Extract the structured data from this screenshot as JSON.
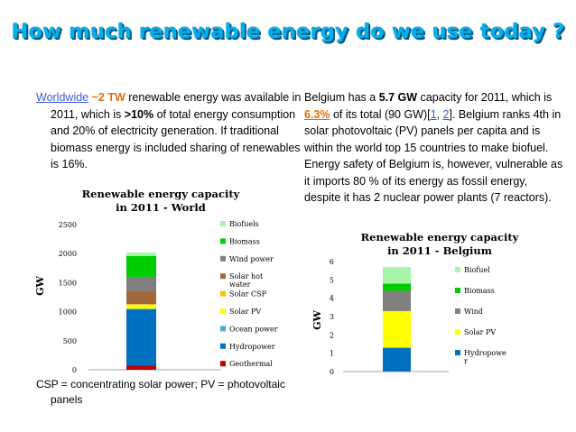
{
  "title": "How much renewable energy do we use today ?",
  "left_paragraph": {
    "worldwide": "Worldwide",
    "amount": "~2 TW",
    "rest_1": " renewable energy was available in 2011, which is ",
    "pct": ">10%",
    "rest_2": " of total energy consumption  and 20% of electricity generation. If traditional biomass energy is included sharing of renewables is 16%."
  },
  "right_paragraph": {
    "p1": "Belgium has a ",
    "capacity": "5.7 GW",
    "p2": " capacity for 2011, which  is ",
    "share": "6.3%",
    "p3": "  of its total (90 GW)[",
    "ref1": "1",
    "sep": ", ",
    "ref2": "2",
    "p4": "]. Belgium ranks 4th in solar photovoltaic (PV) panels per capita and is within the world top 15 countries to make biofuel. Energy safety of Belgium is, however, vulnerable as it imports  80 % of its energy as fossil energy, despite it has 2 nuclear power plants (7 reactors)."
  },
  "caption": "CSP = concentrating solar power; PV = photovoltaic panels",
  "chart_data": [
    {
      "type": "bar",
      "stacked": true,
      "title": [
        "Renewable energy capacity",
        "in 2011 - World"
      ],
      "ylabel": "GW",
      "ylim": [
        0,
        2500
      ],
      "yticks": [
        "0",
        "500",
        "1000",
        "1500",
        "2000",
        "2500"
      ],
      "series": [
        {
          "name": "Geothermal",
          "color": "#c00000",
          "value": 70
        },
        {
          "name": "Hydropower",
          "color": "#0070c0",
          "value": 970
        },
        {
          "name": "Ocean power",
          "color": "#4bacc6",
          "value": 10
        },
        {
          "name": "Solar PV",
          "color": "#ffff00",
          "value": 70
        },
        {
          "name": "Solar CSP",
          "color": "#ffc000",
          "value": 10
        },
        {
          "name": "Solar hot water",
          "color": "#a0683b",
          "value": 230
        },
        {
          "name": "Wind power",
          "color": "#7f7f7f",
          "value": 240
        },
        {
          "name": "Biomass",
          "color": "#00cc00",
          "value": 360
        },
        {
          "name": "Biofuels",
          "color": "#a9f5a9",
          "value": 60
        }
      ],
      "legend": [
        {
          "label": "Biofuels",
          "color": "#a9f5a9"
        },
        {
          "label": "Biomass",
          "color": "#00cc00"
        },
        {
          "label": "Wind power",
          "color": "#7f7f7f"
        },
        {
          "label": "Solar hot water",
          "color": "#a0683b"
        },
        {
          "label": "Solar CSP",
          "color": "#ffc000"
        },
        {
          "label": "Solar PV",
          "color": "#ffff00"
        },
        {
          "label": "Ocean power",
          "color": "#4bacc6"
        },
        {
          "label": "Hydropower",
          "color": "#0070c0"
        },
        {
          "label": "Geothermal",
          "color": "#c00000"
        }
      ]
    },
    {
      "type": "bar",
      "stacked": true,
      "title": [
        "Renewable energy capacity",
        "in 2011  - Belgium"
      ],
      "ylabel": "GW",
      "ylim": [
        0,
        6
      ],
      "yticks": [
        "0",
        "1",
        "2",
        "3",
        "4",
        "5",
        "6"
      ],
      "series": [
        {
          "name": "Hydropower",
          "color": "#0070c0",
          "value": 1.3
        },
        {
          "name": "Solar PV",
          "color": "#ffff00",
          "value": 2.0
        },
        {
          "name": "Wind",
          "color": "#7f7f7f",
          "value": 1.1
        },
        {
          "name": "Biomass",
          "color": "#00cc00",
          "value": 0.4
        },
        {
          "name": "Biofuel",
          "color": "#a9f5a9",
          "value": 0.9
        }
      ],
      "legend": [
        {
          "label": "Biofuel",
          "color": "#a9f5a9"
        },
        {
          "label": "Biomass",
          "color": "#00cc00"
        },
        {
          "label": "Wind",
          "color": "#7f7f7f"
        },
        {
          "label": "Solar PV",
          "color": "#ffff00"
        },
        {
          "label": "Hydropower",
          "color": "#0070c0"
        }
      ]
    }
  ]
}
